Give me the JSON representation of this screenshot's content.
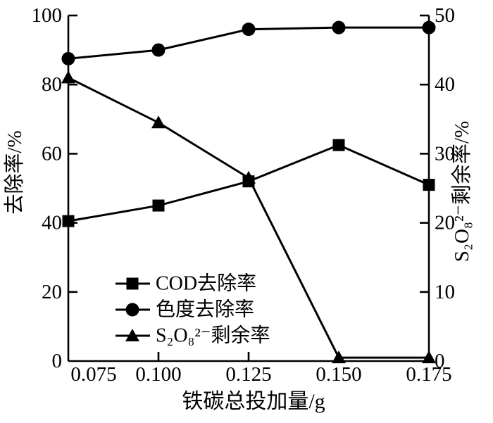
{
  "figure": {
    "background": "#ffffff",
    "ink": "#000000"
  },
  "chart_data": {
    "type": "line",
    "x": [
      0.075,
      0.1,
      0.125,
      0.15,
      0.175
    ],
    "x_tick_labels": [
      "0.075",
      "0.100",
      "0.125",
      "0.150",
      "0.175"
    ],
    "xlabel": "铁碳总投加量/g",
    "left_axis": {
      "label": "去除率/%",
      "ticks": [
        0,
        20,
        40,
        60,
        80,
        100
      ],
      "tick_labels": [
        "0",
        "20",
        "40",
        "60",
        "80",
        "100"
      ],
      "range": [
        0,
        100
      ]
    },
    "right_axis": {
      "label": "S₂O₈²⁻剩余率/%",
      "ticks": [
        0,
        10,
        20,
        30,
        40,
        50
      ],
      "tick_labels": [
        "0",
        "10",
        "20",
        "30",
        "40",
        "50"
      ],
      "range": [
        0,
        50
      ]
    },
    "series": [
      {
        "name": "COD去除率",
        "marker": "square",
        "axis": "left",
        "values": [
          40.5,
          45,
          52,
          62.5,
          51
        ]
      },
      {
        "name": "色度去除率",
        "marker": "circle",
        "axis": "left",
        "values": [
          87.5,
          90,
          96,
          96.5,
          96.5
        ]
      },
      {
        "name": "S₂O₈²⁻剩余率",
        "marker": "triangle",
        "axis": "right",
        "values": [
          41,
          34.5,
          26.5,
          0.5,
          0.5
        ]
      }
    ],
    "legend": {
      "position": "inside-lower-left",
      "entries": [
        "COD去除率",
        "色度去除率",
        "S₂O₈²⁻剩余率"
      ]
    },
    "grid": false,
    "line_color": "#000000"
  }
}
